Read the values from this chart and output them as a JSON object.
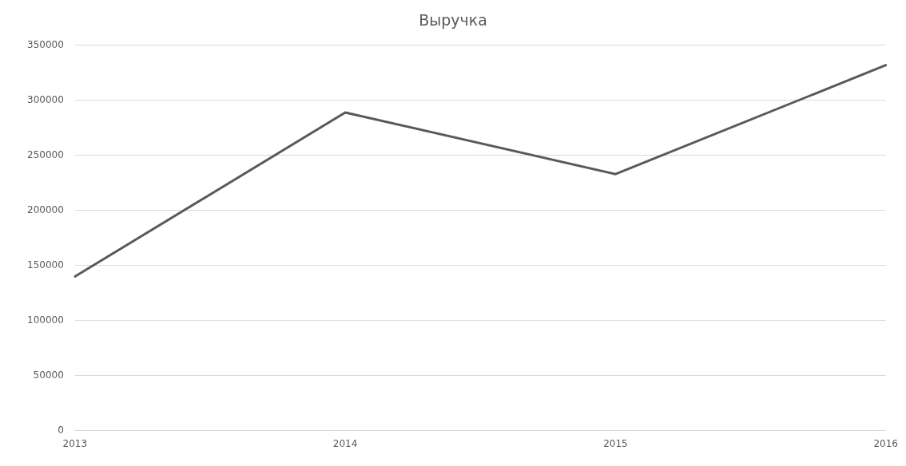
{
  "chart_data": {
    "type": "line",
    "title": "Выручка",
    "categories": [
      "2013",
      "2014",
      "2015",
      "2016"
    ],
    "series": [
      {
        "color": "#595959",
        "values": [
          140000,
          289000,
          233000,
          332000
        ]
      }
    ],
    "ylim": [
      0,
      350000
    ],
    "yticks": [
      0,
      50000,
      100000,
      150000,
      200000,
      250000,
      300000,
      350000
    ],
    "grid": "y",
    "legend": false,
    "marker": "none",
    "line_style": "solid"
  }
}
